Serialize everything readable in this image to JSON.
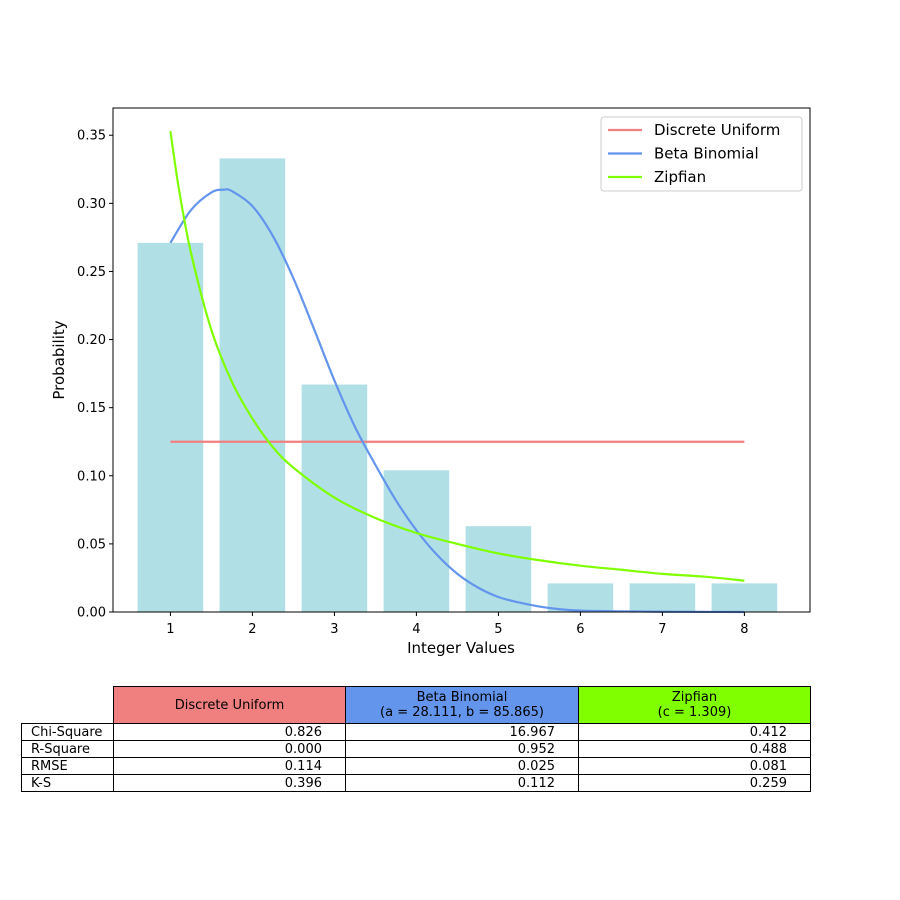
{
  "chart_data": {
    "type": "bar",
    "xlabel": "Integer Values",
    "ylabel": "Probability",
    "categories": [
      1,
      2,
      3,
      4,
      5,
      6,
      7,
      8
    ],
    "xlim": [
      0.3,
      8.8
    ],
    "ylim": [
      0,
      0.37
    ],
    "xticks": [
      "1",
      "2",
      "3",
      "4",
      "5",
      "6",
      "7",
      "8"
    ],
    "yticks": [
      "0.00",
      "0.05",
      "0.10",
      "0.15",
      "0.20",
      "0.25",
      "0.30",
      "0.35"
    ],
    "bars": {
      "values": [
        0.271,
        0.333,
        0.167,
        0.104,
        0.063,
        0.021,
        0.021,
        0.021
      ],
      "color": "#b0dfe5"
    },
    "series": [
      {
        "name": "Discrete Uniform",
        "color": "#f08080",
        "x": [
          1,
          8
        ],
        "y": [
          0.125,
          0.125
        ]
      },
      {
        "name": "Beta Binomial",
        "color": "#6495ed",
        "x": [
          1.0,
          1.25,
          1.5,
          1.65,
          1.75,
          2.0,
          2.25,
          2.5,
          2.75,
          3.0,
          3.25,
          3.5,
          3.75,
          4.0,
          4.25,
          4.5,
          4.75,
          5.0,
          5.25,
          5.5,
          5.75,
          6.0,
          6.5,
          7.0,
          7.5,
          8.0
        ],
        "y": [
          0.271,
          0.295,
          0.308,
          0.31,
          0.309,
          0.298,
          0.276,
          0.245,
          0.208,
          0.17,
          0.136,
          0.108,
          0.082,
          0.06,
          0.042,
          0.028,
          0.018,
          0.011,
          0.007,
          0.004,
          0.002,
          0.001,
          0.0005,
          0.0002,
          0.0001,
          0.0
        ]
      },
      {
        "name": "Zipfian",
        "color": "#7fff00",
        "x": [
          1.0,
          1.1,
          1.25,
          1.5,
          1.75,
          2.0,
          2.25,
          2.5,
          3.0,
          3.5,
          4.0,
          4.5,
          5.0,
          5.5,
          6.0,
          6.5,
          7.0,
          7.5,
          8.0
        ],
        "y": [
          0.353,
          0.312,
          0.264,
          0.207,
          0.169,
          0.142,
          0.121,
          0.106,
          0.084,
          0.069,
          0.058,
          0.05,
          0.043,
          0.038,
          0.034,
          0.031,
          0.028,
          0.026,
          0.023
        ]
      }
    ],
    "legend_position": "top-right"
  },
  "table": {
    "columns": [
      {
        "label": "Discrete Uniform",
        "sub": "",
        "color": "#f08080"
      },
      {
        "label": "Beta Binomial",
        "sub": "(a = 28.111, b = 85.865)",
        "color": "#6495ed"
      },
      {
        "label": "Zipfian",
        "sub": "(c = 1.309)",
        "color": "#7fff00"
      }
    ],
    "rows": [
      {
        "label": "Chi-Square",
        "values": [
          "0.826",
          "16.967",
          "0.412"
        ]
      },
      {
        "label": "R-Square",
        "values": [
          "0.000",
          "0.952",
          "0.488"
        ]
      },
      {
        "label": "RMSE",
        "values": [
          "0.114",
          "0.025",
          "0.081"
        ]
      },
      {
        "label": "K-S",
        "values": [
          "0.396",
          "0.112",
          "0.259"
        ]
      }
    ]
  }
}
